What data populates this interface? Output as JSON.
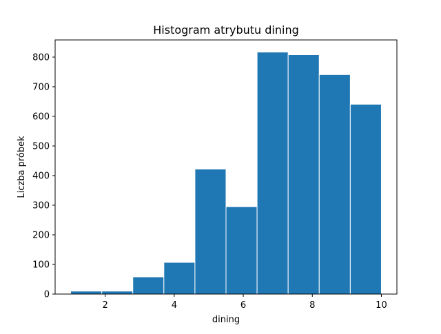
{
  "chart_data": {
    "type": "bar",
    "title": "Histogram atrybutu dining",
    "xlabel": "dining",
    "ylabel": "Liczba próbek",
    "bin_edges": [
      1.0,
      1.9,
      2.8,
      3.7,
      4.6,
      5.5,
      6.4,
      7.3,
      8.2,
      9.1,
      10.0
    ],
    "values": [
      10,
      10,
      58,
      107,
      422,
      295,
      817,
      808,
      741,
      641
    ],
    "xlim": [
      0.55,
      10.45
    ],
    "ylim": [
      0,
      858
    ],
    "xticks": [
      2,
      4,
      6,
      8,
      10
    ],
    "yticks": [
      0,
      100,
      200,
      300,
      400,
      500,
      600,
      700,
      800
    ],
    "bar_color": "#1f77b4",
    "bar_edge_color": "#ffffff",
    "grid": false,
    "legend": false
  }
}
